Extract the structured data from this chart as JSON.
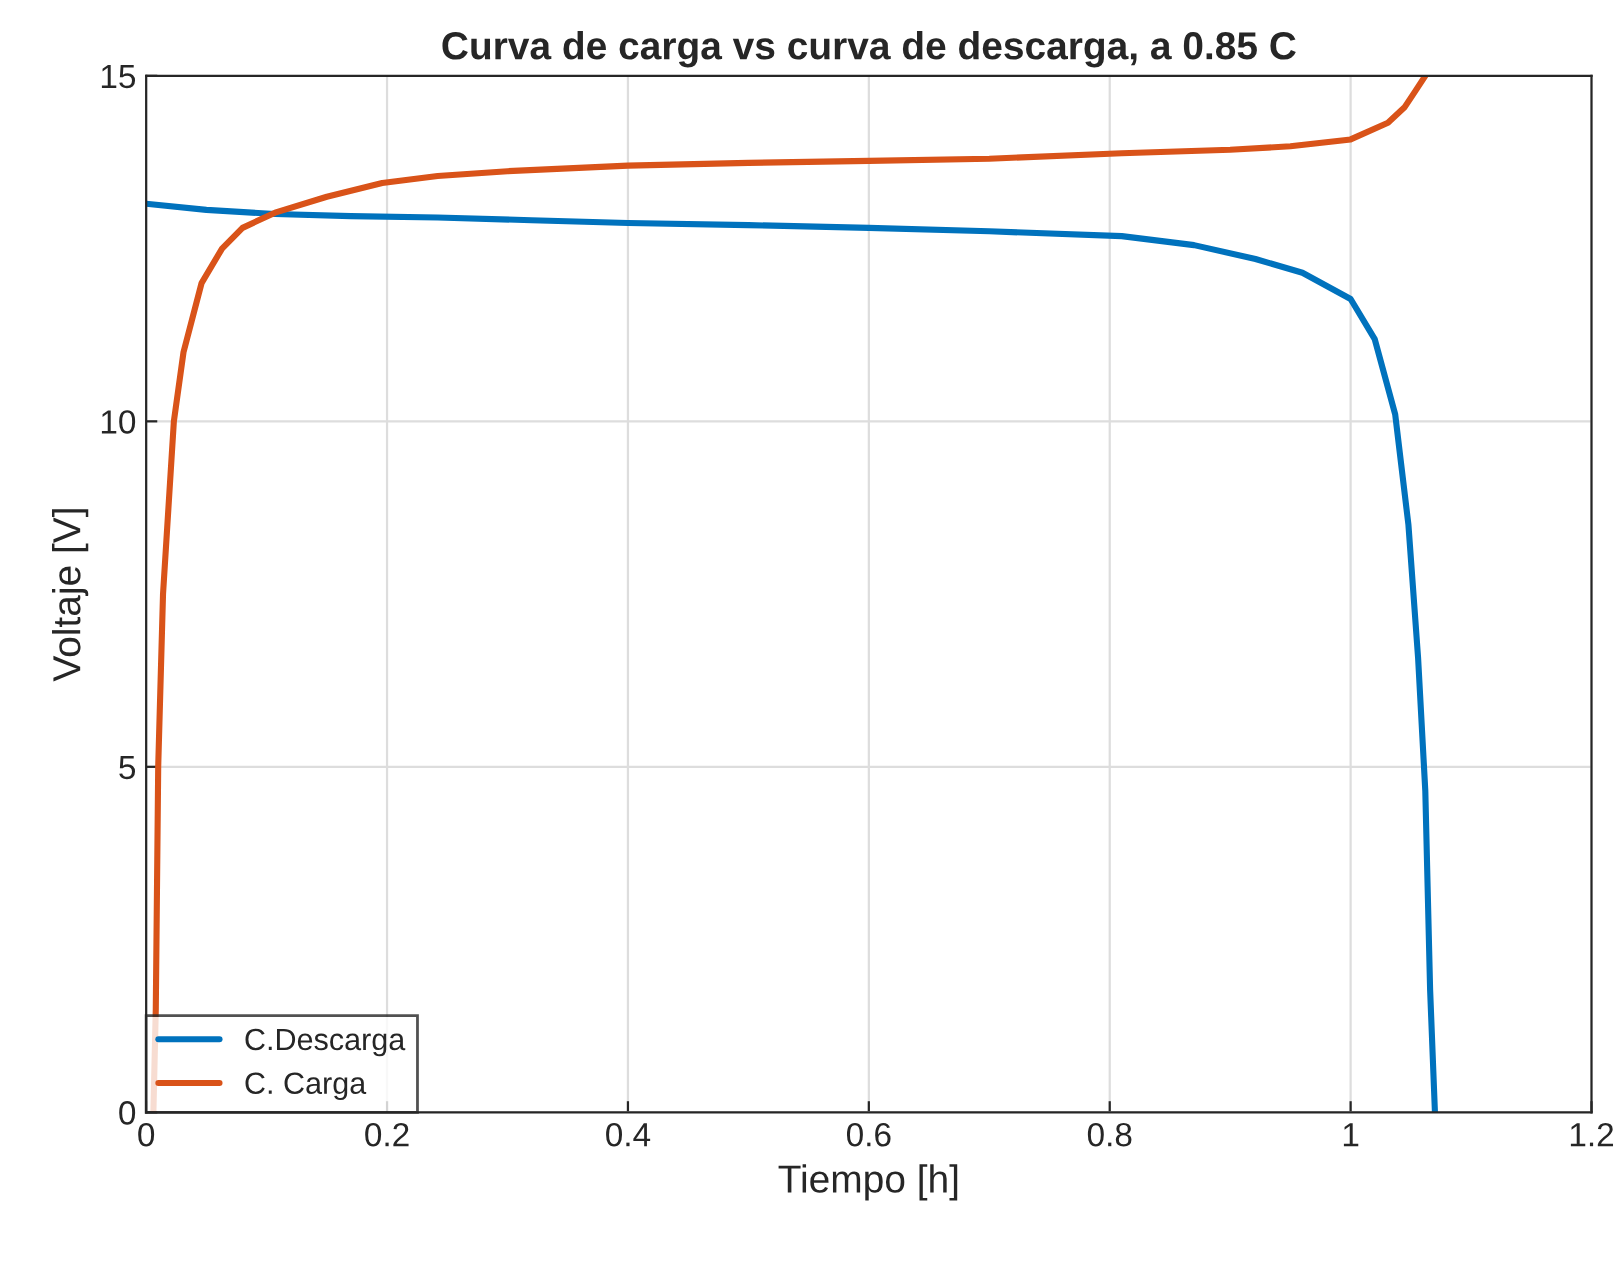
{
  "chart_data": {
    "type": "line",
    "title": "Curva de carga vs curva de descarga, a 0.85 C",
    "xlabel": "Tiempo [h]",
    "ylabel": "Voltaje [V]",
    "xlim": [
      0,
      1.2
    ],
    "ylim": [
      0,
      15
    ],
    "xticks": [
      0,
      0.2,
      0.4,
      0.6,
      0.8,
      1,
      1.2
    ],
    "yticks": [
      0,
      5,
      10,
      15
    ],
    "grid": true,
    "legend": "bottom left",
    "line_style": "solid",
    "marker": "none",
    "series": [
      {
        "name": "C.Descarga",
        "color": "#0072bd",
        "x": [
          0,
          0.05,
          0.107,
          0.17,
          0.242,
          0.32,
          0.4,
          0.5,
          0.6,
          0.7,
          0.81,
          0.87,
          0.921,
          0.96,
          1.0,
          1.02,
          1.037,
          1.048,
          1.056,
          1.062,
          1.066,
          1.07
        ],
        "values": [
          13.15,
          13.06,
          13.0,
          12.97,
          12.95,
          12.91,
          12.87,
          12.84,
          12.8,
          12.75,
          12.68,
          12.55,
          12.35,
          12.15,
          11.77,
          11.19,
          10.1,
          8.5,
          6.58,
          4.65,
          1.77,
          0
        ]
      },
      {
        "name": "C. Carga",
        "color": "#d95319",
        "x": [
          0.006,
          0.008,
          0.01,
          0.014,
          0.023,
          0.031,
          0.046,
          0.063,
          0.08,
          0.107,
          0.15,
          0.196,
          0.242,
          0.3,
          0.4,
          0.5,
          0.6,
          0.7,
          0.81,
          0.9,
          0.95,
          1.0,
          1.031,
          1.045,
          1.053,
          1.062
        ],
        "values": [
          0,
          1.5,
          5,
          7.5,
          10,
          11,
          12,
          12.5,
          12.8,
          13.02,
          13.25,
          13.45,
          13.55,
          13.62,
          13.7,
          13.74,
          13.77,
          13.8,
          13.88,
          13.93,
          13.98,
          14.08,
          14.32,
          14.55,
          14.76,
          15
        ]
      }
    ]
  }
}
